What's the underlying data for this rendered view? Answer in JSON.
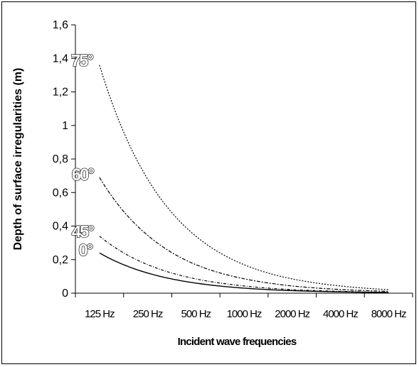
{
  "chart_data": {
    "type": "line",
    "title": "",
    "xlabel": "Incident wave frequencies",
    "ylabel": "Depth of surface irregularities (m)",
    "categories": [
      "125 Hz",
      "250 Hz",
      "500 Hz",
      "1000 Hz",
      "2000 Hz",
      "4000 Hz",
      "8000 Hz"
    ],
    "ylim": [
      0,
      1.6
    ],
    "yticks": [
      "0",
      "0,2",
      "0,4",
      "0,6",
      "0,8",
      "1",
      "1,2",
      "1,4",
      "1,6"
    ],
    "grid": false,
    "legend": "none",
    "series": [
      {
        "name": "0°",
        "values": [
          0.24,
          0.12,
          0.06,
          0.03,
          0.015,
          0.008,
          0.004
        ],
        "dash": "solid"
      },
      {
        "name": "45°",
        "values": [
          0.34,
          0.17,
          0.085,
          0.043,
          0.021,
          0.011,
          0.005
        ],
        "dash": "dashdot-fine"
      },
      {
        "name": "60°",
        "values": [
          0.69,
          0.345,
          0.17,
          0.086,
          0.043,
          0.022,
          0.011
        ],
        "dash": "dashdot"
      },
      {
        "name": "75°",
        "values": [
          1.36,
          0.68,
          0.34,
          0.17,
          0.085,
          0.043,
          0.021
        ],
        "dash": "dotted"
      }
    ]
  }
}
